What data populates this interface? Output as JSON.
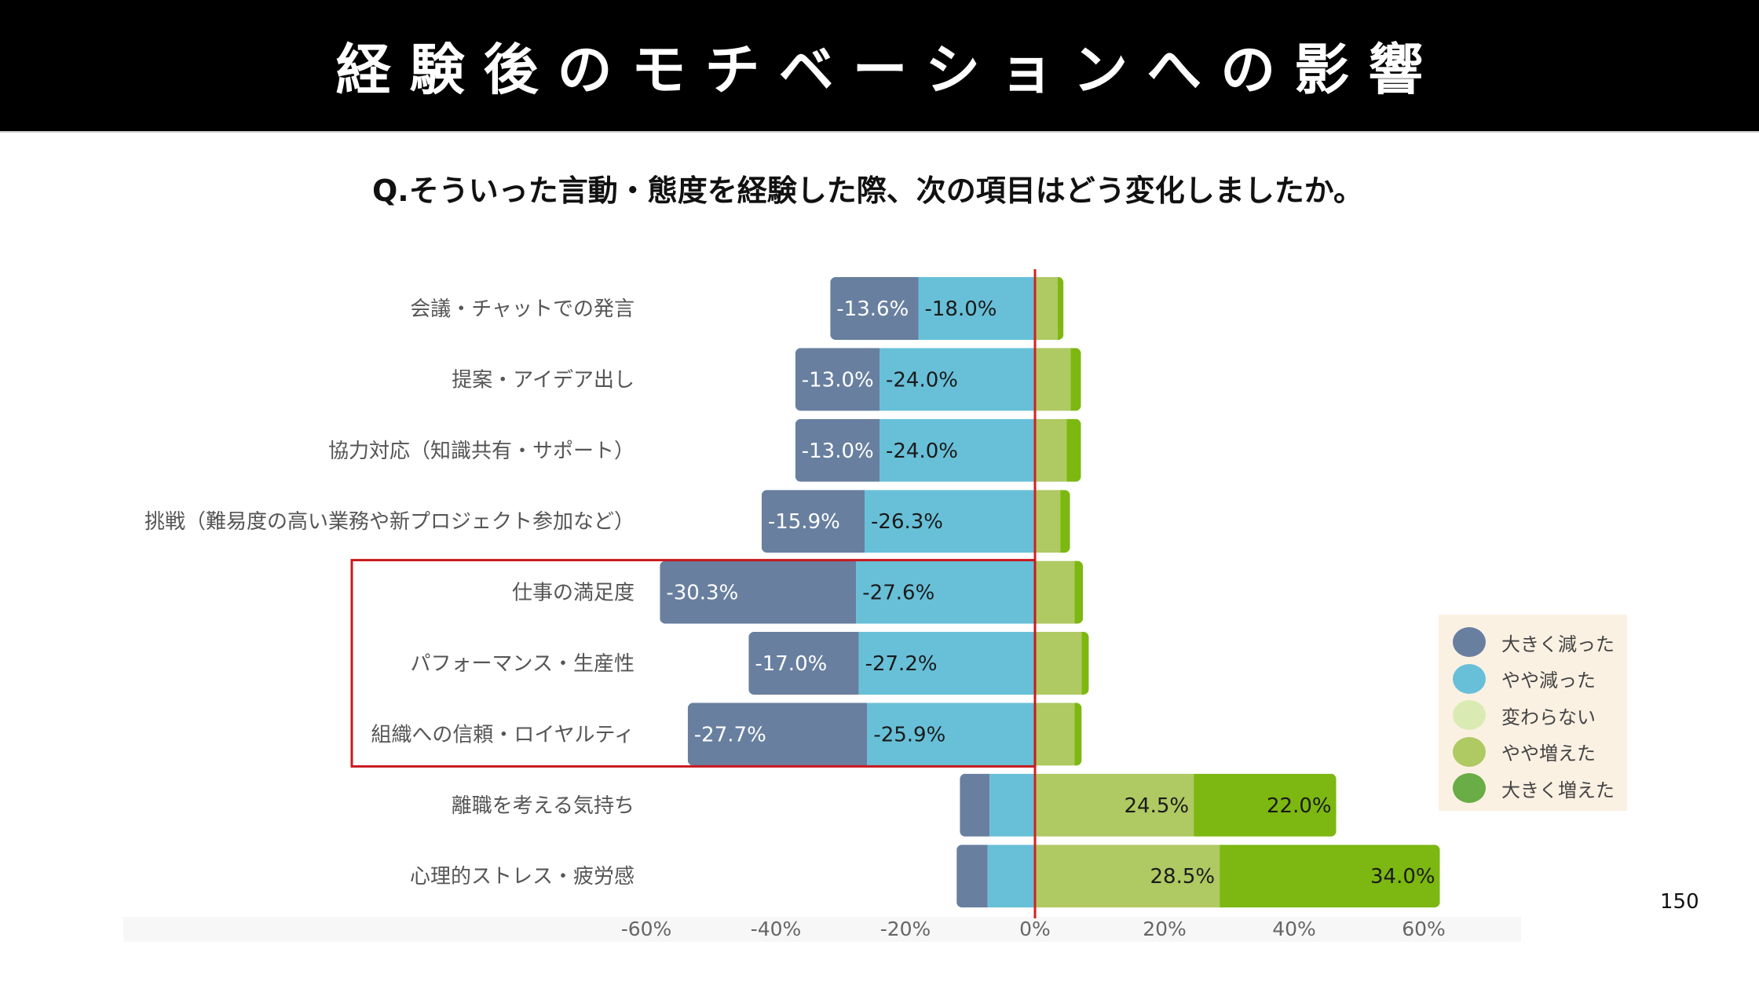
{
  "header": {
    "title": "経験後のモチベーションへの影響"
  },
  "question": "Q.そういった言動・態度を経験した際、次の項目はどう変化しましたか。",
  "page_number": "150",
  "colors": {
    "large_decrease": "#687f9f",
    "slight_decrease": "#68c0d8",
    "no_change": "#d9ebb3",
    "slight_increase": "#afc963",
    "large_increase": "#7cb811",
    "legend_large_increase": "#6aac45",
    "zero_line": "#d42020",
    "highlight_box": "#c8191f"
  },
  "legend": {
    "items": [
      {
        "label": "大きく減った",
        "color": "#687f9f"
      },
      {
        "label": "やや減った",
        "color": "#68c0d8"
      },
      {
        "label": "変わらない",
        "color": "#d9ebb3"
      },
      {
        "label": "やや増えた",
        "color": "#afc963"
      },
      {
        "label": "大きく増えた",
        "color": "#6aac45"
      }
    ]
  },
  "chart_data": {
    "type": "bar",
    "orientation": "horizontal",
    "stacked": "diverging",
    "title": "",
    "xlabel": "",
    "ylabel": "",
    "xlim": [
      -60,
      60
    ],
    "x_ticks": [
      "-60%",
      "-40%",
      "-20%",
      "0%",
      "20%",
      "40%",
      "60%"
    ],
    "x_tick_values": [
      -60,
      -40,
      -20,
      0,
      20,
      40,
      60
    ],
    "grid": false,
    "legend_position": "right",
    "highlighted_categories": [
      "仕事の満足度",
      "パフォーマンス・生産性",
      "組織への信頼・ロイヤルティ"
    ],
    "categories": [
      "会議・チャットでの発言",
      "提案・アイデア出し",
      "協力対応（知識共有・サポート）",
      "挑戦（難易度の高い業務や新プロジェクト参加など）",
      "仕事の満足度",
      "パフォーマンス・生産性",
      "組織への信頼・ロイヤルティ",
      "離職を考える気持ち",
      "心理的ストレス・疲労感"
    ],
    "series": [
      {
        "name": "大きく減った",
        "values": [
          -13.6,
          -13.0,
          -13.0,
          -15.9,
          -30.3,
          -17.0,
          -27.7,
          -4.6,
          -4.8
        ],
        "labels": [
          "-13.6%",
          "-13.0%",
          "-13.0%",
          "-15.9%",
          "-30.3%",
          "-17.0%",
          "-27.7%",
          "",
          ""
        ]
      },
      {
        "name": "やや減った",
        "values": [
          -18.0,
          -24.0,
          -24.0,
          -26.3,
          -27.6,
          -27.2,
          -25.9,
          -7.0,
          -7.3
        ],
        "labels": [
          "-18.0%",
          "-24.0%",
          "-24.0%",
          "-26.3%",
          "-27.6%",
          "-27.2%",
          "-25.9%",
          "",
          ""
        ]
      },
      {
        "name": "やや増えた",
        "values": [
          3.5,
          5.5,
          4.9,
          3.9,
          6.1,
          7.2,
          6.1,
          24.5,
          28.5
        ],
        "labels": [
          "",
          "",
          "",
          "",
          "",
          "",
          "",
          "24.5%",
          "28.5%"
        ]
      },
      {
        "name": "大きく増えた",
        "values": [
          0.9,
          1.6,
          2.2,
          1.5,
          1.3,
          1.1,
          1.1,
          22.0,
          34.0
        ],
        "labels": [
          "",
          "",
          "",
          "",
          "",
          "",
          "",
          "22.0%",
          "34.0%"
        ]
      }
    ]
  }
}
